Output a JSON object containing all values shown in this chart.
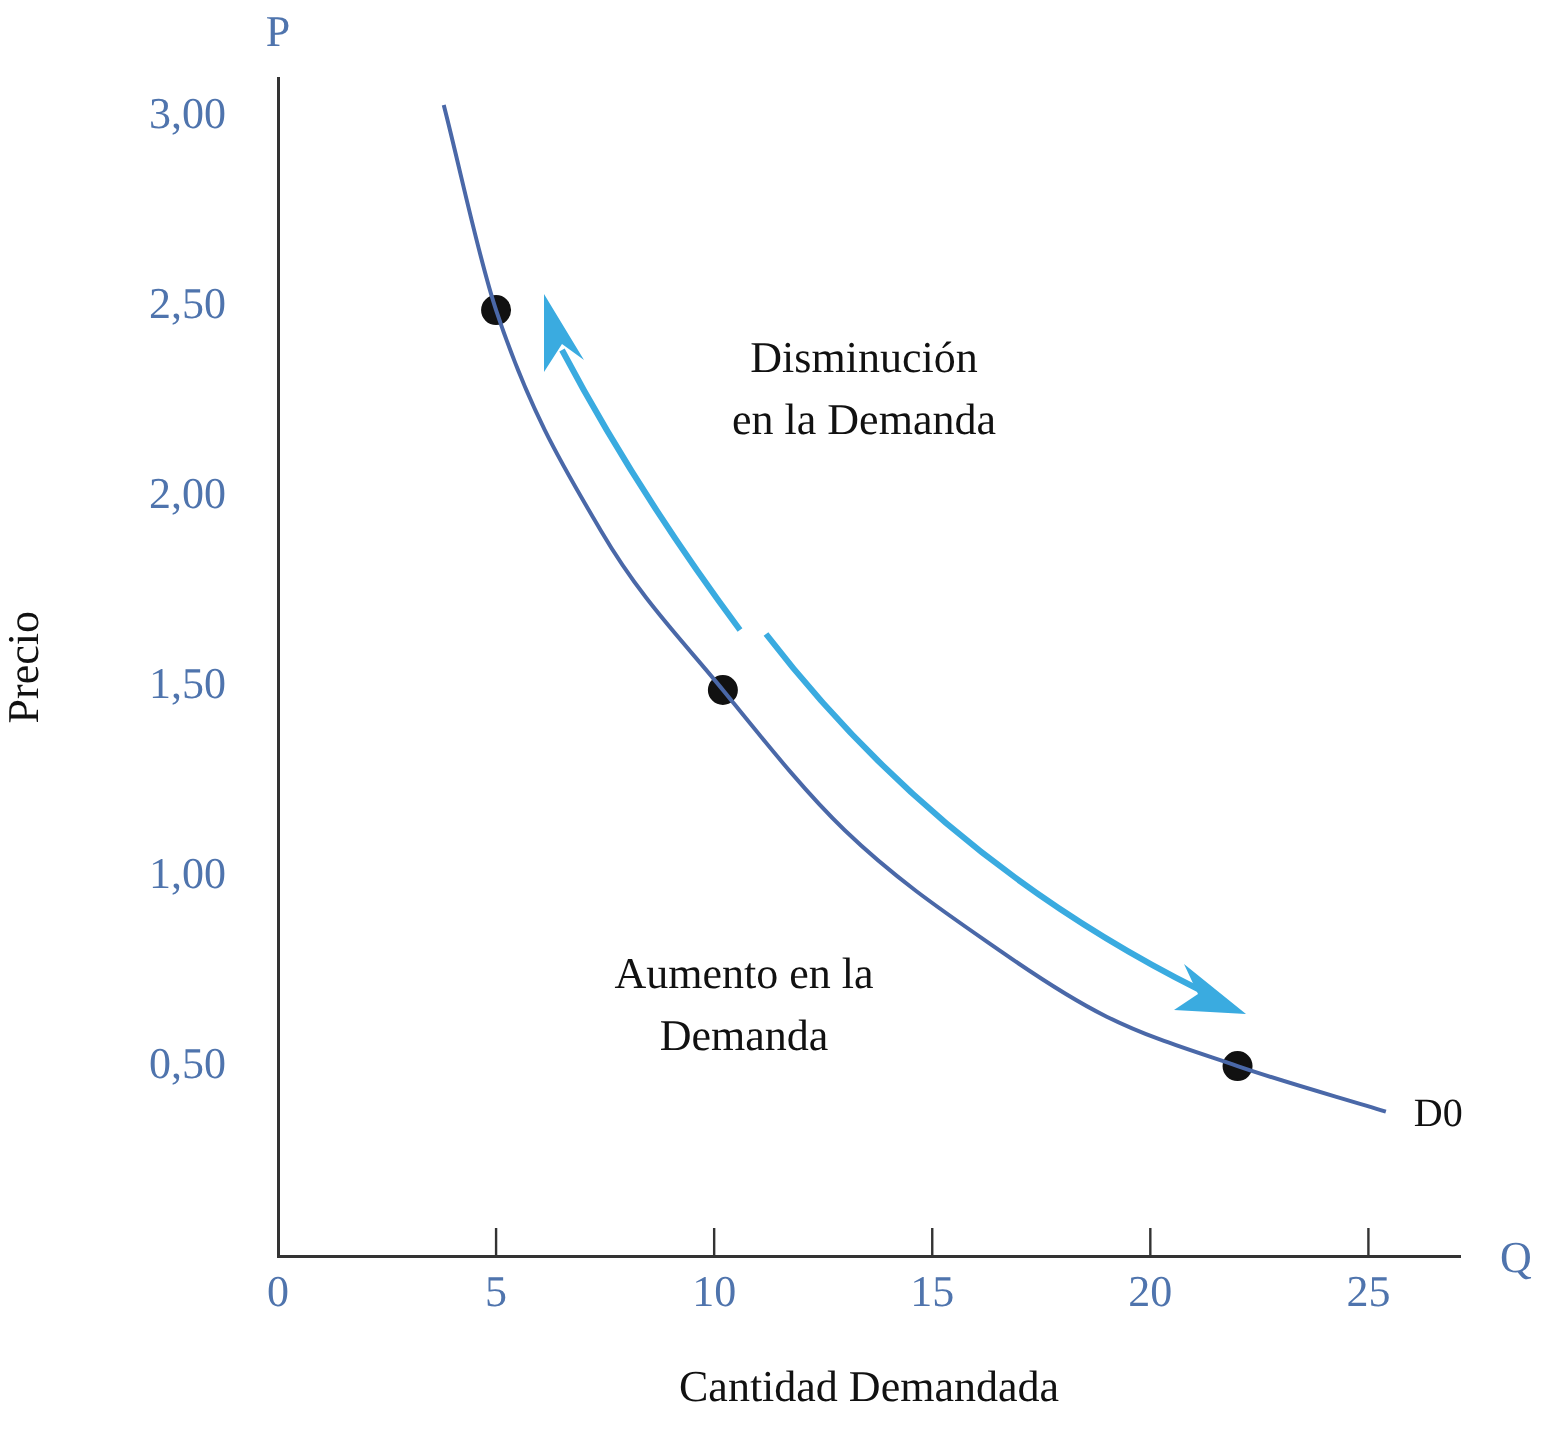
{
  "chart_data": {
    "type": "line",
    "xlabel": "Cantidad Demandada",
    "ylabel": "Precio",
    "annotations": [
      "P",
      "Q",
      "Disminución\nen la Demanda",
      "Aumento en la\nDemanda"
    ],
    "xlim": [
      0,
      27.1
    ],
    "xticks": [
      0,
      5,
      10,
      15,
      20,
      25
    ],
    "ylim": [
      0,
      3.1
    ],
    "yticks": [
      {
        "value": 0.5,
        "label": "0,50"
      },
      {
        "value": 1,
        "label": "1,00"
      },
      {
        "value": 1.5,
        "label": "1,50"
      },
      {
        "value": 2,
        "label": "2,00"
      },
      {
        "value": 2.5,
        "label": "2,50"
      },
      {
        "value": 3,
        "label": "3,00"
      }
    ],
    "grid": false,
    "legend": false,
    "series": [
      {
        "name": "D0",
        "type": "line",
        "color": "#4a68a8",
        "marker": "none",
        "x": [
          3.8,
          5,
          7.4,
          10.2,
          13,
          16.6,
          19,
          22,
          25.4
        ],
        "values": [
          3.03,
          2.49,
          1.91,
          1.49,
          1.12,
          0.8,
          0.63,
          0.5,
          0.38
        ]
      },
      {
        "type": "scatter",
        "color": "#111111",
        "marker": "circle",
        "x": [
          5,
          10.2,
          22
        ],
        "values": [
          2.49,
          1.49,
          0.5
        ]
      }
    ]
  }
}
